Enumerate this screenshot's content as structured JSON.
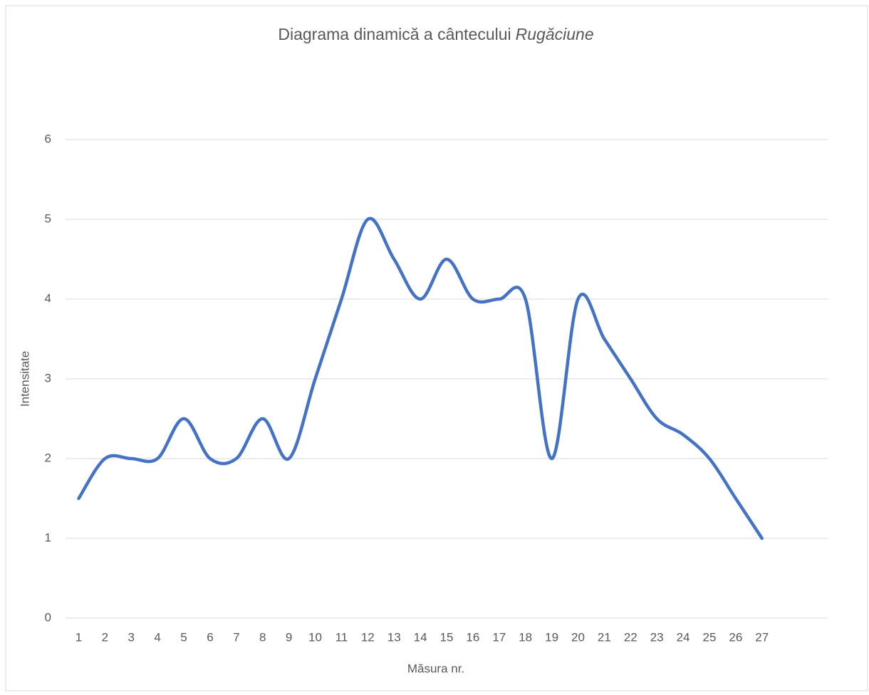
{
  "chart_data": {
    "type": "line",
    "title": "Diagrama dinamică a cântecului",
    "title_italic": "Rugăciune",
    "x_label": "Măsura nr.",
    "y_label": "Intensitate",
    "categories": [
      "1",
      "2",
      "3",
      "4",
      "5",
      "6",
      "7",
      "8",
      "9",
      "10",
      "11",
      "12",
      "13",
      "14",
      "15",
      "16",
      "17",
      "18",
      "19",
      "20",
      "21",
      "22",
      "23",
      "24",
      "25",
      "26",
      "27",
      null,
      null
    ],
    "series": [
      {
        "name": "Intensitate",
        "color": "#4472c4",
        "values": [
          1.5,
          2,
          2,
          2,
          2.5,
          2,
          2,
          2.5,
          2,
          3,
          4,
          5,
          4.5,
          4,
          4.5,
          4,
          4,
          4,
          2,
          4,
          3.5,
          3,
          2.5,
          2.3,
          2,
          1.5,
          1,
          null,
          null
        ]
      }
    ],
    "ylim": [
      0,
      6
    ],
    "yticks": [
      0,
      1,
      2,
      3,
      4,
      5,
      6
    ],
    "grid": true,
    "smooth": true
  }
}
